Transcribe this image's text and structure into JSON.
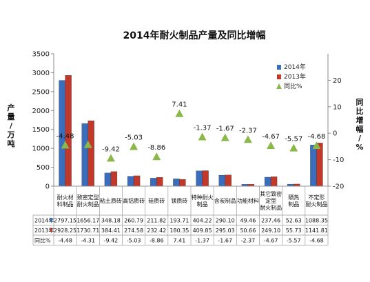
{
  "chart_data": {
    "type": "bar",
    "title": "2014年耐火制品产量及同比增幅",
    "ylabel_left": "产量/万吨",
    "ylabel_right": "同比增幅/%",
    "ylim_left": [
      0,
      3500
    ],
    "yticks_left": [
      0,
      500,
      1000,
      1500,
      2000,
      2500,
      3000,
      3500
    ],
    "ylim_right": [
      -20,
      30
    ],
    "yticks_right": [
      -20,
      -10,
      0,
      10,
      20
    ],
    "legend_position": "top-right",
    "categories": [
      "耐火材料制品",
      "致密定型耐火制品",
      "粘土质砖",
      "高铝质砖",
      "硅质砖",
      "镁质砖",
      "特种耐火制品",
      "含炭制品",
      "功能材料",
      "其它致密定型耐火制品",
      "隔热制品",
      "不定形耐火制品"
    ],
    "category_lines": [
      [
        "耐火材",
        "料制品"
      ],
      [
        "致密定型",
        "耐火制品"
      ],
      [
        "粘土质砖"
      ],
      [
        "高铝质砖"
      ],
      [
        "硅质砖"
      ],
      [
        "镁质砖"
      ],
      [
        "特种耐火",
        "制品"
      ],
      [
        "含炭制品"
      ],
      [
        "功能材料"
      ],
      [
        "其它致密",
        "定型",
        "耐火制品"
      ],
      [
        "隔热",
        "制品"
      ],
      [
        "不定形",
        "耐火制品"
      ]
    ],
    "series": [
      {
        "name": "2014年",
        "kind": "bar",
        "axis": "left",
        "color": "#3a6ebd",
        "values": [
          2797.15,
          1656.17,
          348.18,
          260.79,
          211.82,
          193.71,
          404.22,
          290.1,
          49.46,
          237.46,
          52.63,
          1088.35
        ],
        "labels": [
          "2797.15",
          "1656.17",
          "348.18",
          "260.79",
          "211.82",
          "193.71",
          "404.22",
          "290.10",
          "49.46",
          "237.46",
          "52.63",
          "1088.35"
        ]
      },
      {
        "name": "2013年",
        "kind": "bar",
        "axis": "left",
        "color": "#c0392b",
        "values": [
          2928.25,
          1730.71,
          384.41,
          274.58,
          232.42,
          180.35,
          409.85,
          295.03,
          50.66,
          249.1,
          55.73,
          1141.81
        ],
        "labels": [
          "2928.25",
          "1730.71",
          "384.41",
          "274.58",
          "232.42",
          "180.35",
          "409.85",
          "295.03",
          "50.66",
          "249.10",
          "55.73",
          "1141.81"
        ]
      },
      {
        "name": "同比%",
        "kind": "marker",
        "axis": "right",
        "color": "#8ab84a",
        "values": [
          -4.48,
          -4.31,
          -9.42,
          -5.03,
          -8.86,
          7.41,
          -1.37,
          -1.67,
          -2.37,
          -4.67,
          -5.57,
          -4.68
        ],
        "labels": [
          "-4.48",
          "-4.31",
          "-9.42",
          "-5.03",
          "-8.86",
          "7.41",
          "-1.37",
          "-1.67",
          "-2.37",
          "-4.67",
          "-5.57",
          "-4.68"
        ]
      }
    ],
    "data_labels": [
      "-4.48",
      "",
      "-9.42",
      "-5.03",
      "-8.86",
      "7.41",
      "-1.37",
      "-1.67",
      "-2.37",
      "-4.67",
      "-5.57",
      "-4.68"
    ],
    "table_row_labels": [
      "2014年",
      "2013年",
      "同比%"
    ]
  }
}
